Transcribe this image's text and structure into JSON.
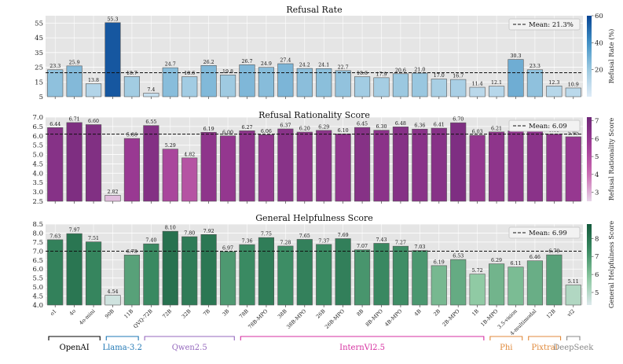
{
  "models": [
    "o1",
    "4o",
    "4o-mini",
    "90B",
    "11B",
    "QVQ-72B",
    "72B",
    "32B",
    "7B",
    "3B",
    "78B",
    "78B-MPO",
    "38B",
    "38B-MPO",
    "26B",
    "26B-MPO",
    "8B",
    "8B-MPO",
    "4B-MPO",
    "4B",
    "2B",
    "2B-MPO",
    "1B",
    "1B-MPO",
    "3.5-vision",
    "4-multimodal",
    "12B",
    "vl2"
  ],
  "families": [
    {
      "name": "OpenAI",
      "color": "#000000",
      "start": 0,
      "end": 2
    },
    {
      "name": "Llama-3.2",
      "color": "#1f77b4",
      "start": 3,
      "end": 4
    },
    {
      "name": "Qwen2.5",
      "color": "#9467bd",
      "start": 5,
      "end": 9
    },
    {
      "name": "InternVl2.5",
      "color": "#d62fa0",
      "start": 10,
      "end": 22
    },
    {
      "name": "Phi",
      "color": "#e08a3c",
      "start": 23,
      "end": 24
    },
    {
      "name": "Pixtral",
      "color": "#e08a3c",
      "start": 25,
      "end": 26
    },
    {
      "name": "DeepSeek",
      "color": "#888888",
      "start": 27,
      "end": 27
    }
  ],
  "chart_data": [
    {
      "type": "bar",
      "title": "Refusal Rate",
      "colorbar_label": "Refusal Rate (%)",
      "colorbar_ticks": [
        "20",
        "40",
        "60"
      ],
      "mean_label": "Mean: 21.3%",
      "mean": 21.3,
      "ylim": [
        5,
        60
      ],
      "yticks": [
        "5",
        "15",
        "25",
        "35",
        "45",
        "55"
      ],
      "ytick_values": [
        5,
        15,
        25,
        35,
        45,
        55
      ],
      "cmap_range": [
        0,
        60
      ],
      "palette": "blues",
      "legend_position": "top-right",
      "values": [
        23.3,
        25.9,
        13.8,
        55.3,
        18.7,
        7.4,
        24.7,
        18.6,
        26.2,
        19.8,
        26.7,
        24.9,
        27.4,
        24.2,
        24.1,
        22.7,
        18.6,
        17.9,
        20.6,
        21.0,
        17.0,
        16.7,
        11.4,
        12.1,
        30.3,
        23.3,
        12.3,
        10.9
      ],
      "labels": [
        "23.3",
        "25.9",
        "13.8",
        "55.3",
        "18.7",
        "7.4",
        "24.7",
        "18.6",
        "26.2",
        "19.8",
        "26.7",
        "24.9",
        "27.4",
        "24.2",
        "24.1",
        "22.7",
        "18.6",
        "17.9",
        "20.6",
        "21.0",
        "17.0",
        "16.7",
        "11.4",
        "12.1",
        "30.3",
        "23.3",
        "12.3",
        "10.9"
      ]
    },
    {
      "type": "bar",
      "title": "Refusal Rationality Score",
      "colorbar_label": "Refusal Rationality Score",
      "colorbar_ticks": [
        "3",
        "4",
        "5",
        "6",
        "7"
      ],
      "mean_label": "Mean: 6.09",
      "mean": 6.09,
      "ylim": [
        2.5,
        7.0
      ],
      "yticks": [
        "2.5",
        "3.0",
        "3.5",
        "4.0",
        "4.5",
        "5.0",
        "5.5",
        "6.0",
        "6.5",
        "7.0"
      ],
      "ytick_values": [
        2.5,
        3.0,
        3.5,
        4.0,
        4.5,
        5.0,
        5.5,
        6.0,
        6.5,
        7.0
      ],
      "cmap_range": [
        2.5,
        7.2
      ],
      "palette": "purples",
      "legend_position": "top-right",
      "values": [
        6.44,
        6.71,
        6.6,
        2.82,
        5.86,
        6.55,
        5.29,
        4.82,
        6.19,
        6.0,
        6.27,
        6.06,
        6.37,
        6.2,
        6.29,
        6.1,
        6.45,
        6.3,
        6.48,
        6.36,
        6.41,
        6.7,
        6.03,
        6.21,
        6.26,
        6.31,
        6.09,
        5.95
      ],
      "labels": [
        "6.44",
        "6.71",
        "6.60",
        "2.82",
        "5.86",
        "6.55",
        "5.29",
        "4.82",
        "6.19",
        "6.00",
        "6.27",
        "6.06",
        "6.37",
        "6.20",
        "6.29",
        "6.10",
        "6.45",
        "6.30",
        "6.48",
        "6.36",
        "6.41",
        "6.70",
        "6.03",
        "6.21",
        "6.26",
        "6.31",
        "6.09",
        "5.95"
      ]
    },
    {
      "type": "bar",
      "title": "General Helpfulness Score",
      "colorbar_label": "General Helpfulness Score",
      "colorbar_ticks": [
        "5",
        "6",
        "7",
        "8"
      ],
      "mean_label": "Mean: 6.99",
      "mean": 6.99,
      "ylim": [
        4.0,
        8.5
      ],
      "yticks": [
        "4.0",
        "4.5",
        "5.0",
        "5.5",
        "6.0",
        "6.5",
        "7.0",
        "7.5",
        "8.0",
        "8.5"
      ],
      "ytick_values": [
        4.0,
        4.5,
        5.0,
        5.5,
        6.0,
        6.5,
        7.0,
        7.5,
        8.0,
        8.5
      ],
      "cmap_range": [
        4.3,
        8.8
      ],
      "palette": "greens",
      "legend_position": "top-right",
      "values": [
        7.63,
        7.97,
        7.51,
        4.54,
        6.78,
        7.4,
        8.1,
        7.8,
        7.92,
        6.97,
        7.36,
        7.75,
        7.28,
        7.65,
        7.37,
        7.69,
        7.07,
        7.43,
        7.27,
        7.03,
        6.19,
        6.53,
        5.72,
        6.29,
        6.11,
        6.46,
        6.79,
        5.11
      ],
      "labels": [
        "7.63",
        "7.97",
        "7.51",
        "4.54",
        "6.78",
        "7.40",
        "8.10",
        "7.80",
        "7.92",
        "6.97",
        "7.36",
        "7.75",
        "7.28",
        "7.65",
        "7.37",
        "7.69",
        "7.07",
        "7.43",
        "7.27",
        "7.03",
        "6.19",
        "6.53",
        "5.72",
        "6.29",
        "6.11",
        "6.46",
        "6.79",
        "5.11"
      ]
    }
  ]
}
